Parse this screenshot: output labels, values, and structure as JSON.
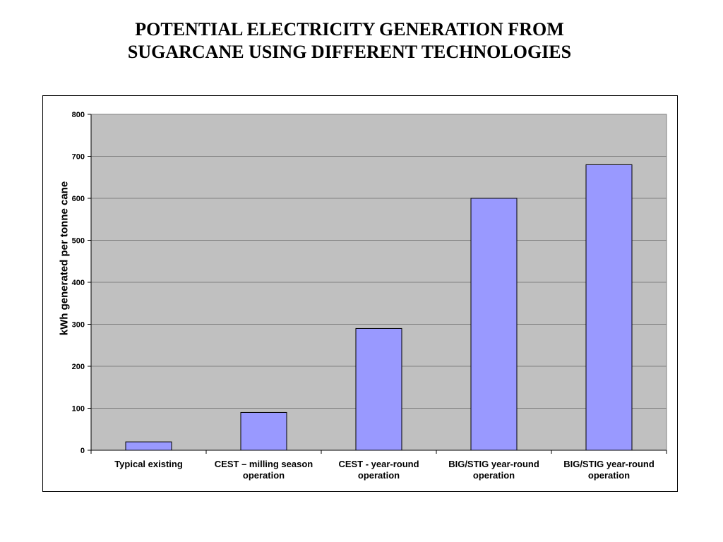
{
  "title": {
    "line1": "POTENTIAL ELECTRICITY GENERATION FROM",
    "line2": "SUGARCANE USING DIFFERENT TECHNOLOGIES"
  },
  "chart_data": {
    "type": "bar",
    "categories": [
      [
        "Typical existing"
      ],
      [
        "CEST – milling season",
        "operation"
      ],
      [
        "CEST - year-round",
        "operation"
      ],
      [
        "BIG/STIG year-round",
        "operation"
      ],
      [
        "BIG/STIG year-round",
        "operation"
      ]
    ],
    "values": [
      20,
      90,
      290,
      600,
      680
    ],
    "ylabel": "kWh generated per tonne cane",
    "xlabel": "",
    "ylim": [
      0,
      800
    ],
    "yticks": [
      0,
      100,
      200,
      300,
      400,
      500,
      600,
      700,
      800
    ],
    "grid": true,
    "colors": {
      "bar_fill": "#9999ff",
      "plot_background": "#c0c0c0",
      "gridline": "#808080"
    }
  }
}
